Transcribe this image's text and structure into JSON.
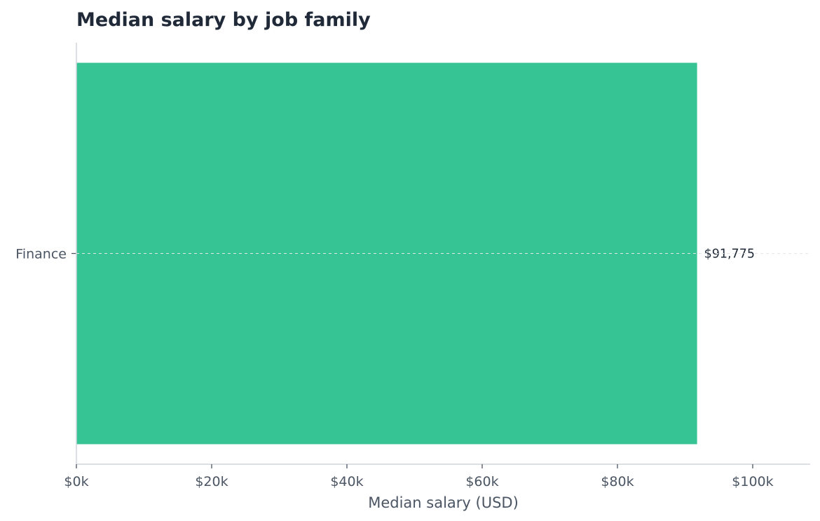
{
  "chart_data": {
    "type": "bar",
    "orientation": "horizontal",
    "title": "Median salary by job family",
    "xlabel": "Median salary (USD)",
    "ylabel": "",
    "categories": [
      "Finance"
    ],
    "values": [
      91775
    ],
    "value_labels": [
      "$91,775"
    ],
    "xlim": [
      0,
      108500
    ],
    "xticks": [
      0,
      20000,
      40000,
      60000,
      80000,
      100000
    ],
    "xtick_labels": [
      "$0k",
      "$20k",
      "$40k",
      "$60k",
      "$80k",
      "$100k"
    ],
    "grid": false,
    "legend": "none",
    "colors": {
      "bar": "#36c494",
      "title": "#1f2937",
      "axis": "#d1d5db",
      "tick_text": "#4b5563",
      "data_label": "#1f2937"
    }
  }
}
